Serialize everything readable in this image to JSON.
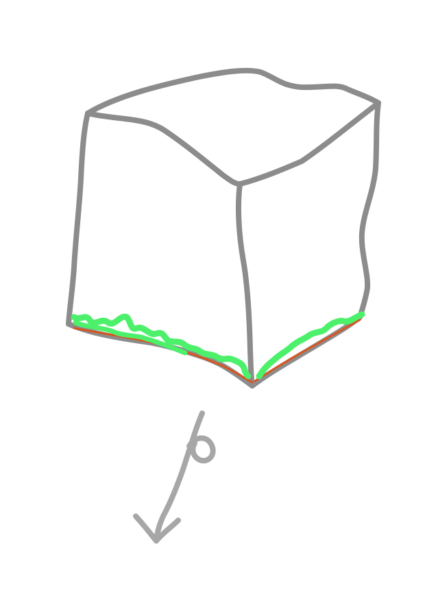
{
  "sketch": {
    "stroke_color": "#8c8c8c",
    "highlight_color": "#4cf06a",
    "highlight_edge_color": "#d9541e",
    "arrow_color": "#a7a7a7",
    "arrow_label": "6"
  }
}
